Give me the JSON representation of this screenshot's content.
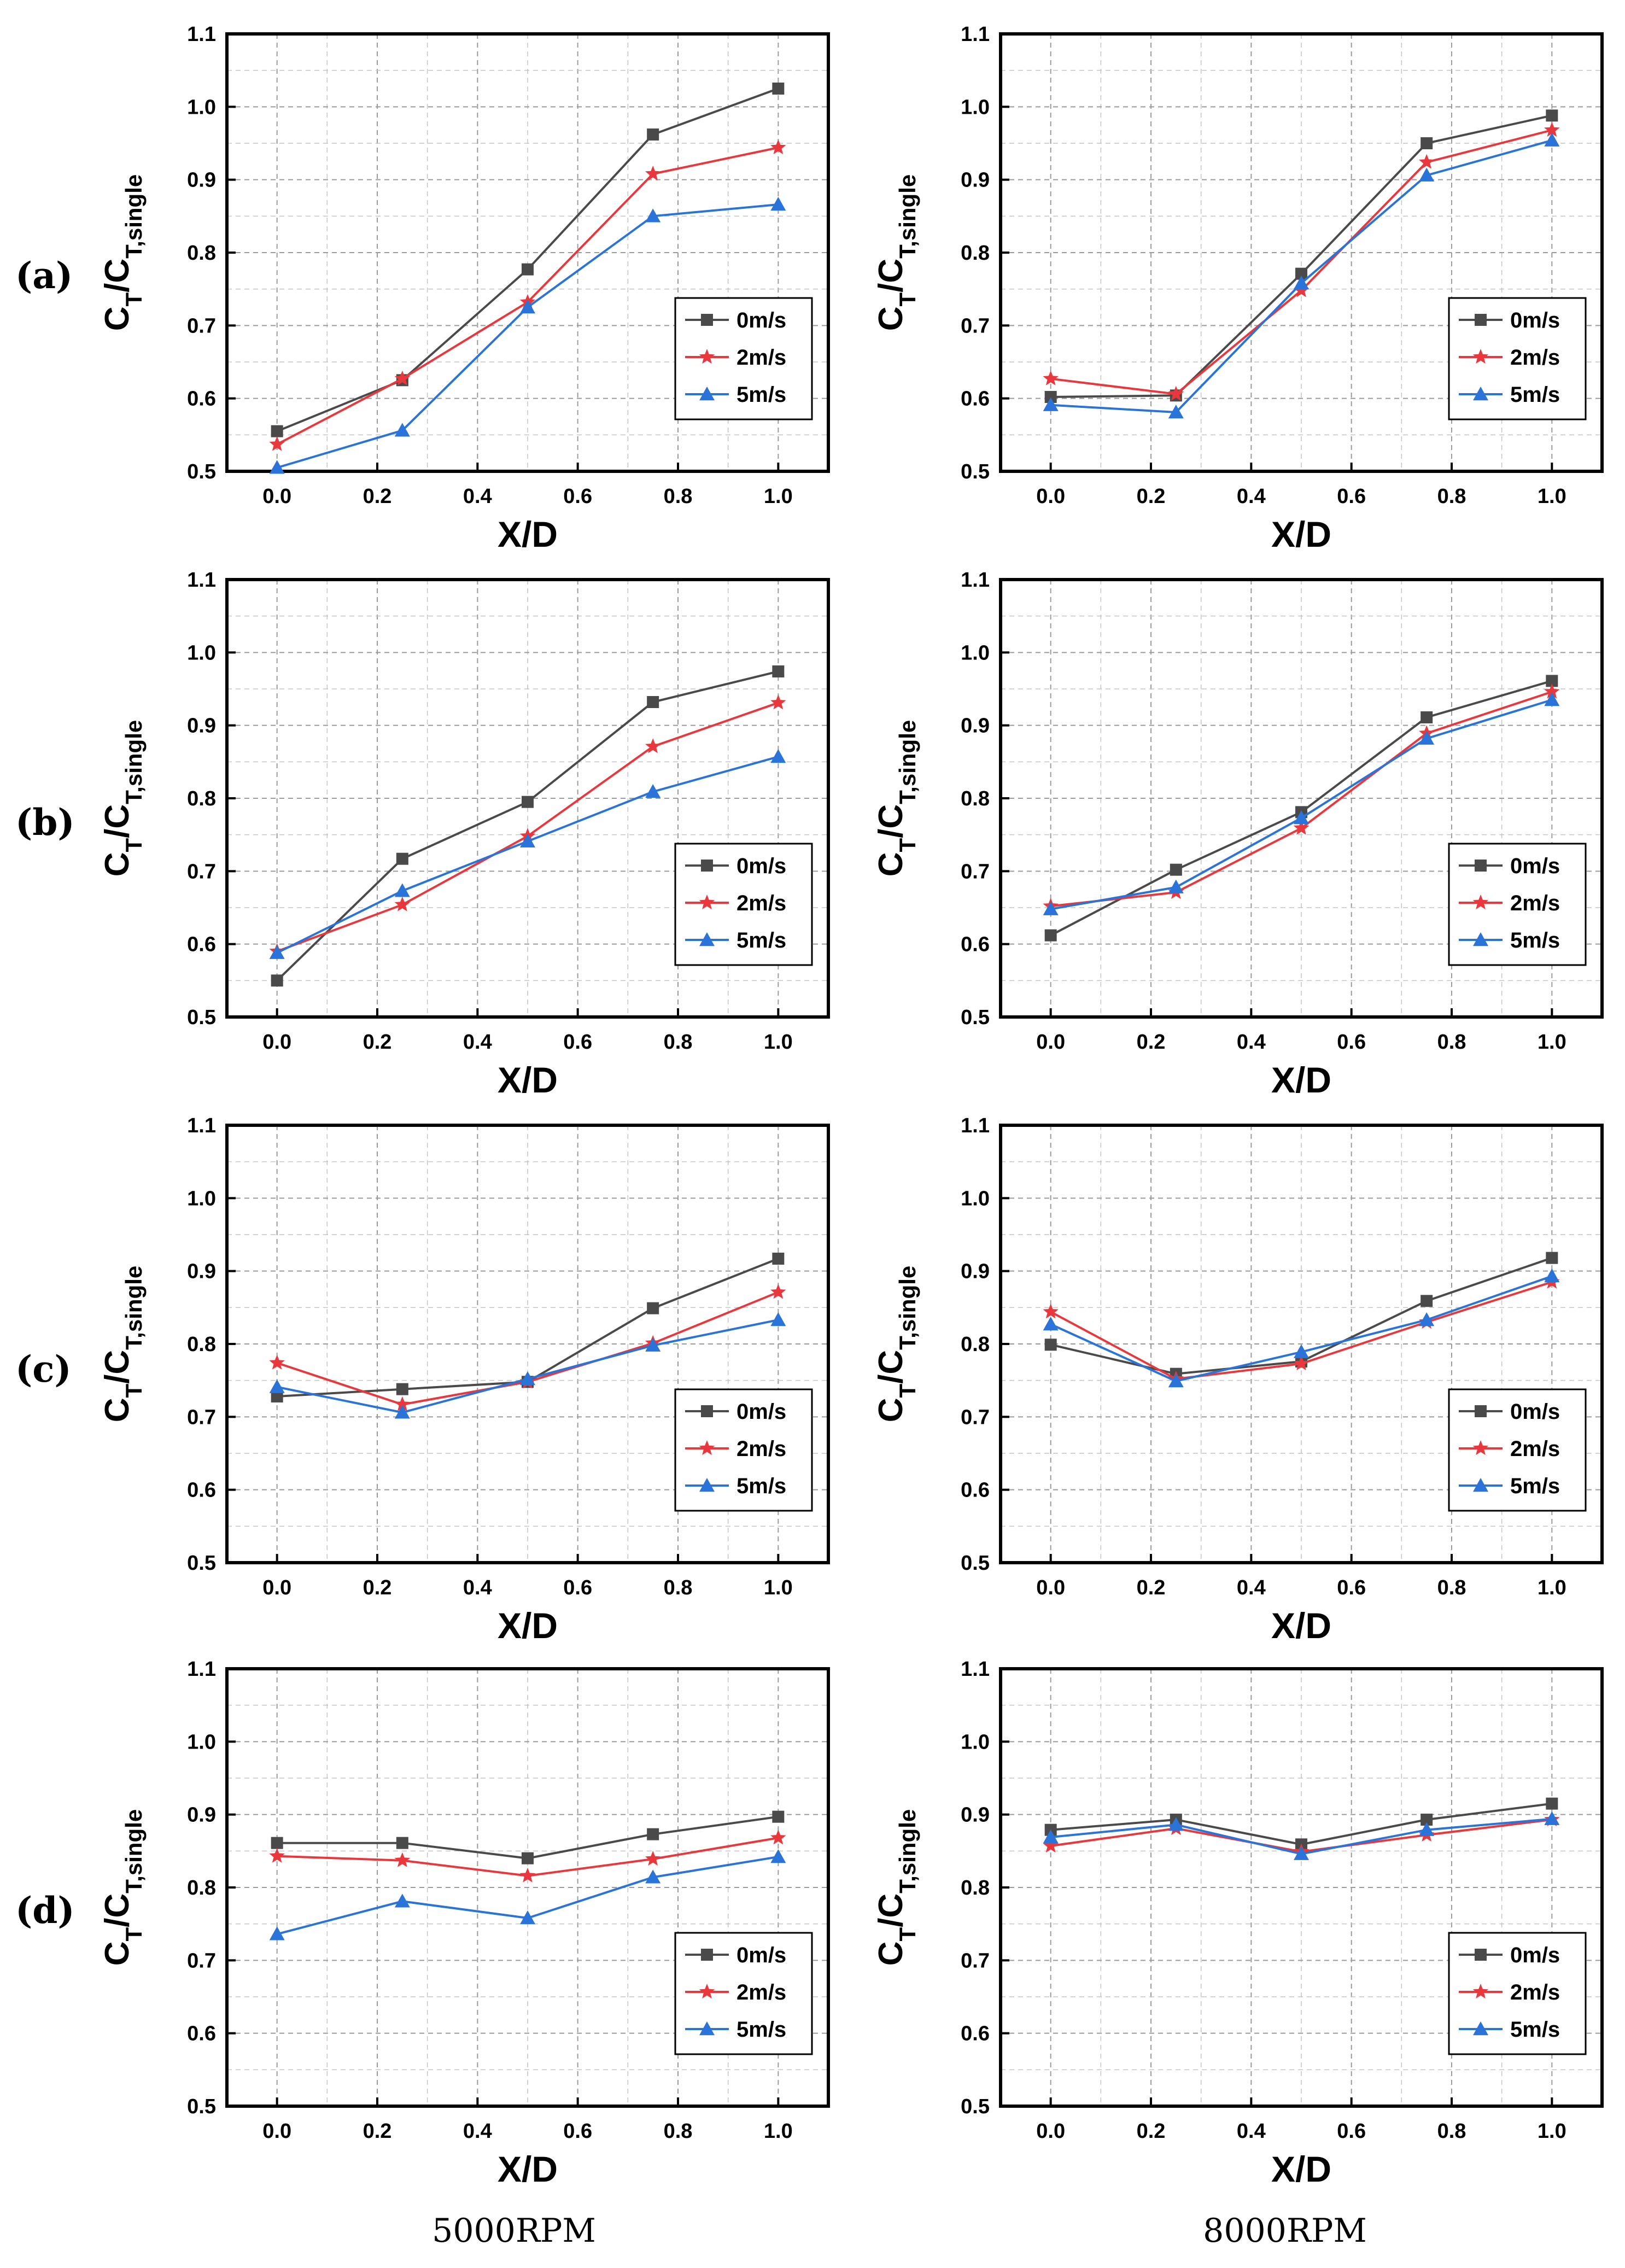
{
  "figure": {
    "row_labels": [
      "(a)",
      "(b)",
      "(c)",
      "(d)"
    ],
    "column_labels": [
      "5000RPM",
      "8000RPM"
    ]
  },
  "series_style": {
    "0m/s": {
      "color": "#4a4a4a",
      "marker": "square"
    },
    "2m/s": {
      "color": "#e8383d",
      "marker": "star"
    },
    "5m/s": {
      "color": "#2a73d8",
      "marker": "triangle"
    }
  },
  "chart_data": [
    {
      "type": "line",
      "panel": "(a)",
      "rpm": "5000RPM",
      "xlabel": "X/D",
      "ylabel_main": "C",
      "ylabel_sub1": "T",
      "ylabel_mid": "/C",
      "ylabel_sub2": "T,single",
      "xlim": [
        -0.1,
        1.1
      ],
      "ylim": [
        0.5,
        1.1
      ],
      "x_ticks": [
        "0.0",
        "0.2",
        "0.4",
        "0.6",
        "0.8",
        "1.0"
      ],
      "y_ticks": [
        "0.5",
        "0.6",
        "0.7",
        "0.8",
        "0.9",
        "1.0",
        "1.1"
      ],
      "legend_position": "lower-right",
      "grid": true,
      "x": [
        0.0,
        0.25,
        0.5,
        0.75,
        1.0
      ],
      "series": [
        {
          "name": "0m/s",
          "values": [
            0.555,
            0.625,
            0.777,
            0.962,
            1.025
          ]
        },
        {
          "name": "2m/s",
          "values": [
            0.537,
            0.627,
            0.732,
            0.908,
            0.944
          ]
        },
        {
          "name": "5m/s",
          "values": [
            0.505,
            0.556,
            0.725,
            0.85,
            0.866
          ]
        }
      ]
    },
    {
      "type": "line",
      "panel": "(a)",
      "rpm": "8000RPM",
      "xlabel": "X/D",
      "ylabel_main": "C",
      "ylabel_sub1": "T",
      "ylabel_mid": "/C",
      "ylabel_sub2": "T,single",
      "xlim": [
        -0.1,
        1.1
      ],
      "ylim": [
        0.5,
        1.1
      ],
      "x_ticks": [
        "0.0",
        "0.2",
        "0.4",
        "0.6",
        "0.8",
        "1.0"
      ],
      "y_ticks": [
        "0.5",
        "0.6",
        "0.7",
        "0.8",
        "0.9",
        "1.0",
        "1.1"
      ],
      "legend_position": "lower-right",
      "grid": true,
      "x": [
        0.0,
        0.25,
        0.5,
        0.75,
        1.0
      ],
      "series": [
        {
          "name": "0m/s",
          "values": [
            0.602,
            0.604,
            0.771,
            0.95,
            0.988
          ]
        },
        {
          "name": "2m/s",
          "values": [
            0.627,
            0.606,
            0.748,
            0.924,
            0.968
          ]
        },
        {
          "name": "5m/s",
          "values": [
            0.591,
            0.581,
            0.758,
            0.906,
            0.954
          ]
        }
      ]
    },
    {
      "type": "line",
      "panel": "(b)",
      "rpm": "5000RPM",
      "xlabel": "X/D",
      "ylabel_main": "C",
      "ylabel_sub1": "T",
      "ylabel_mid": "/C",
      "ylabel_sub2": "T,single",
      "xlim": [
        -0.1,
        1.1
      ],
      "ylim": [
        0.5,
        1.1
      ],
      "x_ticks": [
        "0.0",
        "0.2",
        "0.4",
        "0.6",
        "0.8",
        "1.0"
      ],
      "y_ticks": [
        "0.5",
        "0.6",
        "0.7",
        "0.8",
        "0.9",
        "1.0",
        "1.1"
      ],
      "legend_position": "lower-right",
      "grid": true,
      "x": [
        0.0,
        0.25,
        0.5,
        0.75,
        1.0
      ],
      "series": [
        {
          "name": "0m/s",
          "values": [
            0.55,
            0.717,
            0.795,
            0.932,
            0.974
          ]
        },
        {
          "name": "2m/s",
          "values": [
            0.59,
            0.654,
            0.748,
            0.871,
            0.931
          ]
        },
        {
          "name": "5m/s",
          "values": [
            0.588,
            0.673,
            0.741,
            0.809,
            0.857
          ]
        }
      ]
    },
    {
      "type": "line",
      "panel": "(b)",
      "rpm": "8000RPM",
      "xlabel": "X/D",
      "ylabel_main": "C",
      "ylabel_sub1": "T",
      "ylabel_mid": "/C",
      "ylabel_sub2": "T,single",
      "xlim": [
        -0.1,
        1.1
      ],
      "ylim": [
        0.5,
        1.1
      ],
      "x_ticks": [
        "0.0",
        "0.2",
        "0.4",
        "0.6",
        "0.8",
        "1.0"
      ],
      "y_ticks": [
        "0.5",
        "0.6",
        "0.7",
        "0.8",
        "0.9",
        "1.0",
        "1.1"
      ],
      "legend_position": "lower-right",
      "grid": true,
      "x": [
        0.0,
        0.25,
        0.5,
        0.75,
        1.0
      ],
      "series": [
        {
          "name": "0m/s",
          "values": [
            0.612,
            0.702,
            0.781,
            0.911,
            0.961
          ]
        },
        {
          "name": "2m/s",
          "values": [
            0.652,
            0.671,
            0.759,
            0.889,
            0.946
          ]
        },
        {
          "name": "5m/s",
          "values": [
            0.648,
            0.678,
            0.773,
            0.882,
            0.935
          ]
        }
      ]
    },
    {
      "type": "line",
      "panel": "(c)",
      "rpm": "5000RPM",
      "xlabel": "X/D",
      "ylabel_main": "C",
      "ylabel_sub1": "T",
      "ylabel_mid": "/C",
      "ylabel_sub2": "T,single",
      "xlim": [
        -0.1,
        1.1
      ],
      "ylim": [
        0.5,
        1.1
      ],
      "x_ticks": [
        "0.0",
        "0.2",
        "0.4",
        "0.6",
        "0.8",
        "1.0"
      ],
      "y_ticks": [
        "0.5",
        "0.6",
        "0.7",
        "0.8",
        "0.9",
        "1.0",
        "1.1"
      ],
      "legend_position": "lower-right",
      "grid": true,
      "x": [
        0.0,
        0.25,
        0.5,
        0.75,
        1.0
      ],
      "series": [
        {
          "name": "0m/s",
          "values": [
            0.728,
            0.738,
            0.748,
            0.849,
            0.917
          ]
        },
        {
          "name": "2m/s",
          "values": [
            0.774,
            0.717,
            0.748,
            0.801,
            0.871
          ]
        },
        {
          "name": "5m/s",
          "values": [
            0.741,
            0.706,
            0.752,
            0.798,
            0.833
          ]
        }
      ]
    },
    {
      "type": "line",
      "panel": "(c)",
      "rpm": "8000RPM",
      "xlabel": "X/D",
      "ylabel_main": "C",
      "ylabel_sub1": "T",
      "ylabel_mid": "/C",
      "ylabel_sub2": "T,single",
      "xlim": [
        -0.1,
        1.1
      ],
      "ylim": [
        0.5,
        1.1
      ],
      "x_ticks": [
        "0.0",
        "0.2",
        "0.4",
        "0.6",
        "0.8",
        "1.0"
      ],
      "y_ticks": [
        "0.5",
        "0.6",
        "0.7",
        "0.8",
        "0.9",
        "1.0",
        "1.1"
      ],
      "legend_position": "lower-right",
      "grid": true,
      "x": [
        0.0,
        0.25,
        0.5,
        0.75,
        1.0
      ],
      "series": [
        {
          "name": "0m/s",
          "values": [
            0.799,
            0.759,
            0.776,
            0.859,
            0.918
          ]
        },
        {
          "name": "2m/s",
          "values": [
            0.844,
            0.752,
            0.773,
            0.83,
            0.885
          ]
        },
        {
          "name": "5m/s",
          "values": [
            0.827,
            0.749,
            0.789,
            0.833,
            0.893
          ]
        }
      ]
    },
    {
      "type": "line",
      "panel": "(d)",
      "rpm": "5000RPM",
      "xlabel": "X/D",
      "ylabel_main": "C",
      "ylabel_sub1": "T",
      "ylabel_mid": "/C",
      "ylabel_sub2": "T,single",
      "xlim": [
        -0.1,
        1.1
      ],
      "ylim": [
        0.5,
        1.1
      ],
      "x_ticks": [
        "0.0",
        "0.2",
        "0.4",
        "0.6",
        "0.8",
        "1.0"
      ],
      "y_ticks": [
        "0.5",
        "0.6",
        "0.7",
        "0.8",
        "0.9",
        "1.0",
        "1.1"
      ],
      "legend_position": "lower-right",
      "grid": true,
      "x": [
        0.0,
        0.25,
        0.5,
        0.75,
        1.0
      ],
      "series": [
        {
          "name": "0m/s",
          "values": [
            0.861,
            0.861,
            0.84,
            0.873,
            0.897
          ]
        },
        {
          "name": "2m/s",
          "values": [
            0.843,
            0.837,
            0.816,
            0.839,
            0.868
          ]
        },
        {
          "name": "5m/s",
          "values": [
            0.736,
            0.781,
            0.758,
            0.814,
            0.842
          ]
        }
      ]
    },
    {
      "type": "line",
      "panel": "(d)",
      "rpm": "8000RPM",
      "xlabel": "X/D",
      "ylabel_main": "C",
      "ylabel_sub1": "T",
      "ylabel_mid": "/C",
      "ylabel_sub2": "T,single",
      "xlim": [
        -0.1,
        1.1
      ],
      "ylim": [
        0.5,
        1.1
      ],
      "x_ticks": [
        "0.0",
        "0.2",
        "0.4",
        "0.6",
        "0.8",
        "1.0"
      ],
      "y_ticks": [
        "0.5",
        "0.6",
        "0.7",
        "0.8",
        "0.9",
        "1.0",
        "1.1"
      ],
      "legend_position": "lower-right",
      "grid": true,
      "x": [
        0.0,
        0.25,
        0.5,
        0.75,
        1.0
      ],
      "series": [
        {
          "name": "0m/s",
          "values": [
            0.879,
            0.893,
            0.859,
            0.893,
            0.915
          ]
        },
        {
          "name": "2m/s",
          "values": [
            0.857,
            0.881,
            0.849,
            0.872,
            0.893
          ]
        },
        {
          "name": "5m/s",
          "values": [
            0.869,
            0.886,
            0.846,
            0.879,
            0.894
          ]
        }
      ]
    }
  ]
}
